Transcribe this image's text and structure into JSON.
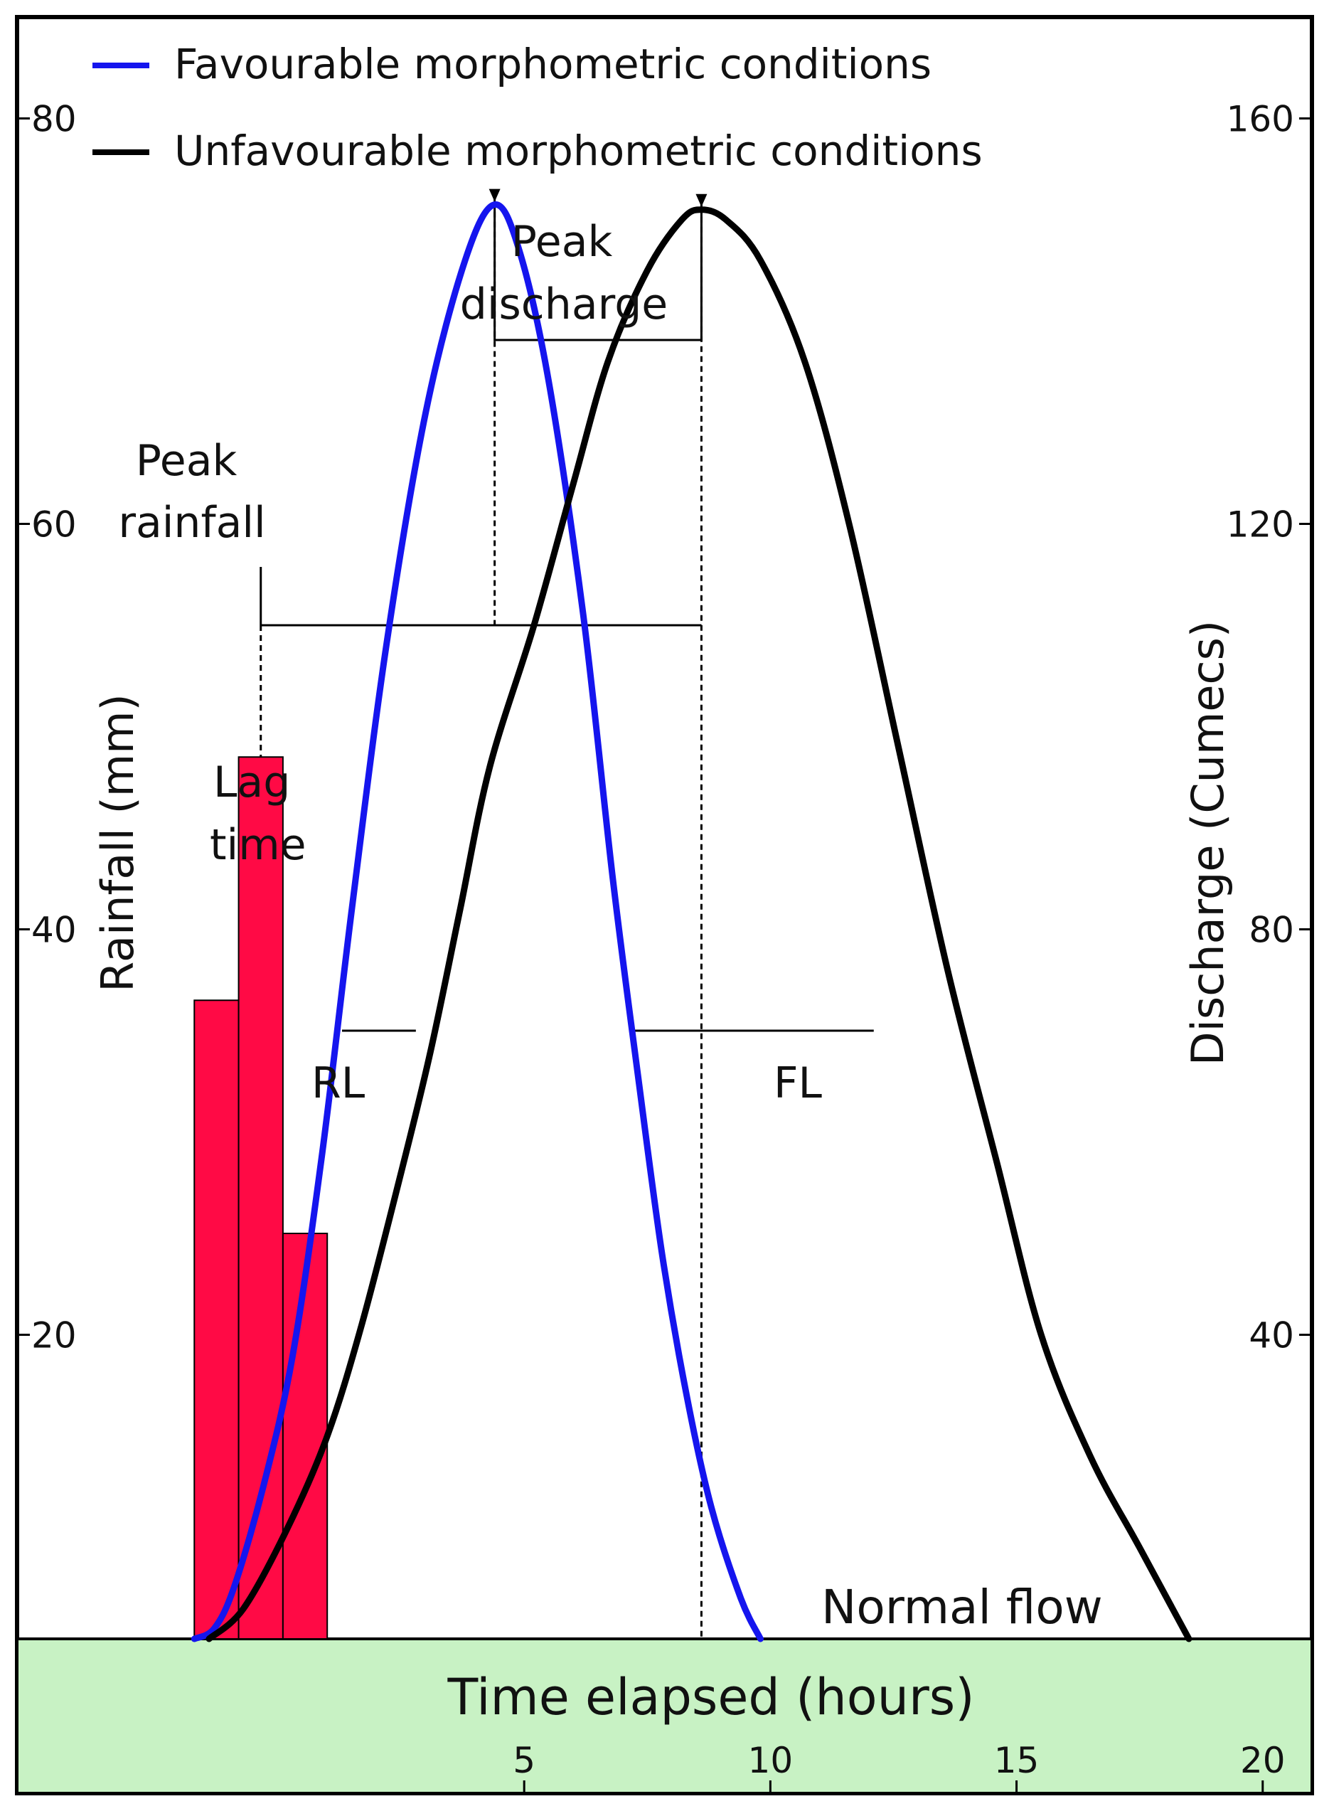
{
  "chart_data": {
    "type": "line",
    "xlabel": "Time elapsed (hours)",
    "ylabel_left": "Rainfall (mm)",
    "ylabel_right": "Discharge (Cumecs)",
    "xlim": [
      -5.3,
      21
    ],
    "x_ticks": [
      5,
      10,
      15,
      20
    ],
    "ylim_left": [
      5,
      85
    ],
    "y_ticks_left": [
      20,
      40,
      60,
      80
    ],
    "ylim_right": [
      10,
      170
    ],
    "y_ticks_right": [
      40,
      80,
      120,
      160
    ],
    "legend_position": "top-left",
    "colors": {
      "favourable": "#1515ee",
      "unfavourable": "#000000",
      "rainfall": "#ff0a45",
      "base": "#c8f2c4"
    },
    "rainfall_bars": [
      {
        "x_start": -1.7,
        "x_end": -0.8,
        "value": 36.5
      },
      {
        "x_start": -0.8,
        "x_end": 0.1,
        "value": 48.5
      },
      {
        "x_start": 0.1,
        "x_end": 1.0,
        "value": 25.0
      }
    ],
    "series": [
      {
        "name": "Favourable morphometric conditions",
        "color": "#1515ee",
        "axis": "right",
        "points": [
          [
            -1.7,
            10
          ],
          [
            -1.3,
            11
          ],
          [
            -0.9,
            15
          ],
          [
            -0.3,
            25
          ],
          [
            0.3,
            38
          ],
          [
            0.9,
            58
          ],
          [
            1.5,
            82
          ],
          [
            2.2,
            108
          ],
          [
            3.0,
            131
          ],
          [
            3.8,
            146
          ],
          [
            4.4,
            151.5
          ],
          [
            4.9,
            147
          ],
          [
            5.5,
            134
          ],
          [
            6.2,
            111
          ],
          [
            6.8,
            85
          ],
          [
            7.3,
            66
          ],
          [
            7.8,
            48
          ],
          [
            8.3,
            34
          ],
          [
            8.8,
            23
          ],
          [
            9.4,
            14
          ],
          [
            9.8,
            10
          ]
        ]
      },
      {
        "name": "Unfavourable morphometric conditions",
        "color": "#000000",
        "axis": "right",
        "points": [
          [
            -1.4,
            10
          ],
          [
            -0.7,
            13
          ],
          [
            0.2,
            21
          ],
          [
            1.0,
            30
          ],
          [
            1.7,
            41
          ],
          [
            2.5,
            56
          ],
          [
            3.1,
            68
          ],
          [
            3.7,
            82
          ],
          [
            4.3,
            96
          ],
          [
            5.2,
            110
          ],
          [
            6.0,
            124
          ],
          [
            6.7,
            136
          ],
          [
            7.5,
            145
          ],
          [
            8.2,
            150
          ],
          [
            8.6,
            151
          ],
          [
            9.1,
            150
          ],
          [
            9.8,
            146
          ],
          [
            10.7,
            136
          ],
          [
            11.6,
            120
          ],
          [
            12.6,
            98
          ],
          [
            13.6,
            76
          ],
          [
            14.6,
            57
          ],
          [
            15.5,
            40
          ],
          [
            16.5,
            28
          ],
          [
            17.5,
            19
          ],
          [
            18.5,
            10
          ]
        ]
      }
    ],
    "annotations": {
      "peak_rainfall": [
        "Peak",
        "rainfall"
      ],
      "peak_discharge": [
        "Peak",
        "discharge"
      ],
      "lag_time": [
        "Lag",
        "time"
      ],
      "rl": "RL",
      "fl": "FL",
      "normal_flow": "Normal flow"
    }
  }
}
